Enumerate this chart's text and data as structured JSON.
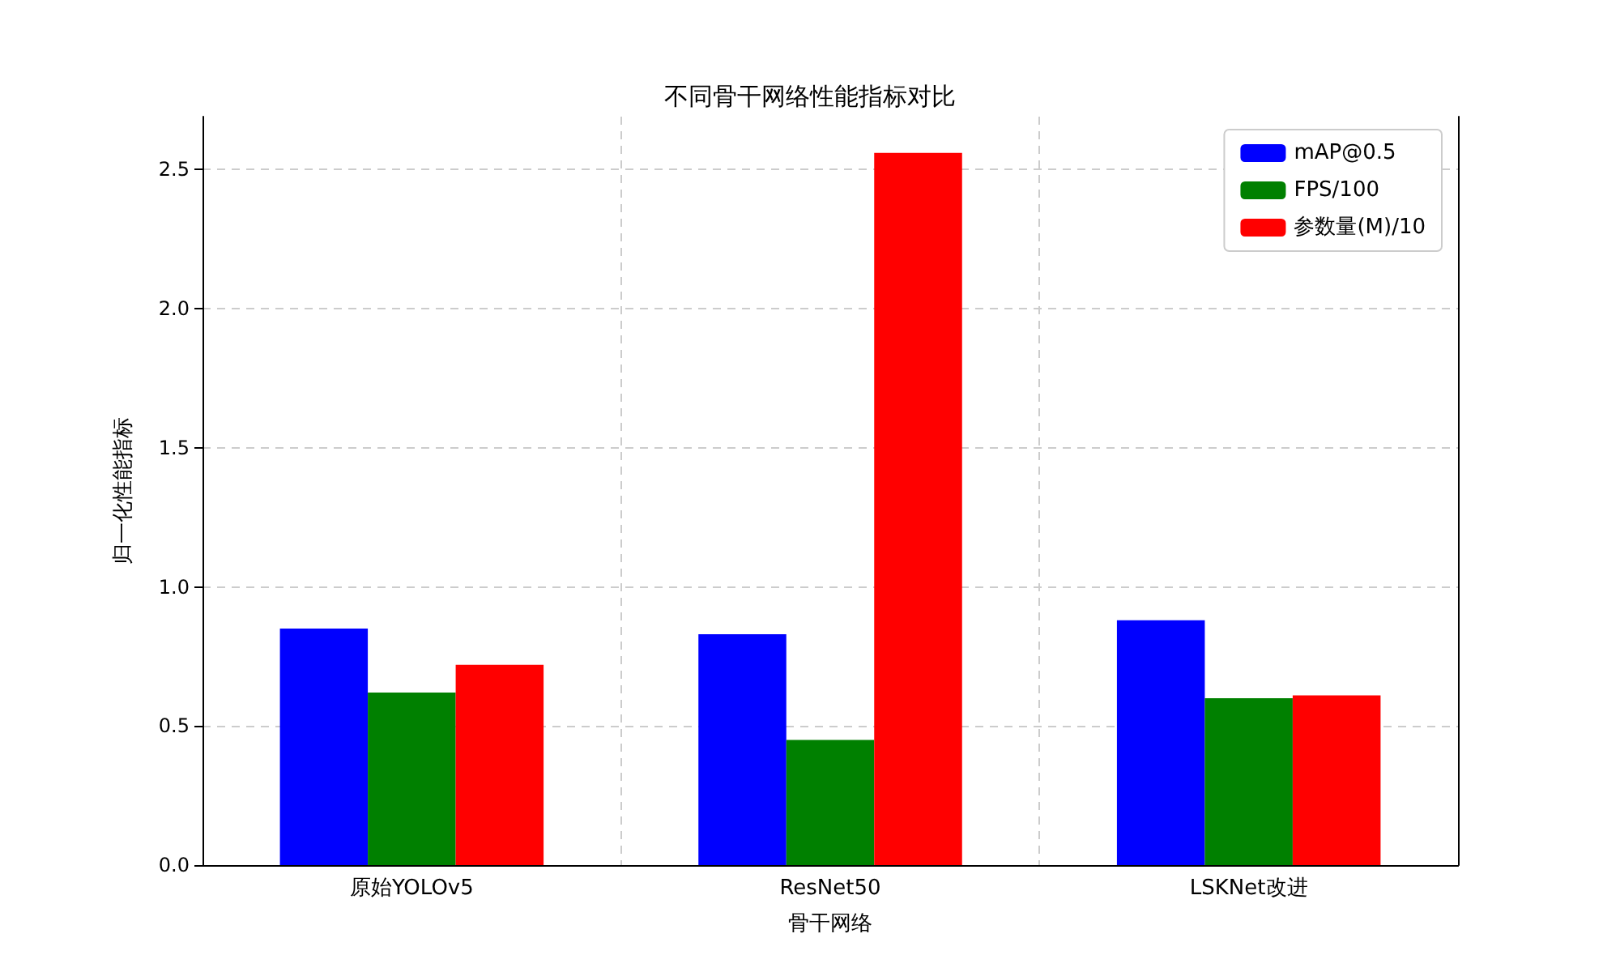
{
  "chart_data": {
    "type": "bar",
    "title": "不同骨干网络性能指标对比",
    "xlabel": "骨干网络",
    "ylabel": "归一化性能指标",
    "categories": [
      "原始YOLOv5",
      "ResNet50",
      "LSKNet改进"
    ],
    "series": [
      {
        "name": "mAP@0.5",
        "color": "#0000ff",
        "values": [
          0.85,
          0.83,
          0.88
        ]
      },
      {
        "name": "FPS/100",
        "color": "#008000",
        "values": [
          0.62,
          0.45,
          0.6
        ]
      },
      {
        "name": "参数量(M)/10",
        "color": "#ff0000",
        "values": [
          0.72,
          2.56,
          0.61
        ]
      }
    ],
    "ylim": [
      0,
      2.69
    ],
    "yticks": [
      {
        "value": 0,
        "label": "0.0"
      },
      0.5,
      {
        "value": 1,
        "label": "1.0"
      },
      1.5,
      {
        "value": 2,
        "label": "2.0"
      },
      2.5
    ],
    "grid": true,
    "legend": "top right"
  }
}
